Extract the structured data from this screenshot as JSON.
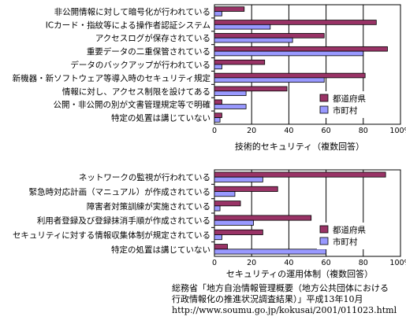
{
  "colors": {
    "prefecture": "#993366",
    "municipality": "#9999ff",
    "axis": "#000000",
    "grid": "#000000"
  },
  "chart_data": [
    {
      "type": "bar",
      "orientation": "horizontal",
      "xlabel": "技術的セキュリティ（複数回答）",
      "xlim": [
        0,
        100
      ],
      "x_ticks": [
        "0",
        "20",
        "40",
        "60",
        "80",
        "100%"
      ],
      "grid": true,
      "legend": "bottom-right",
      "categories": [
        "非公開情報に対して暗号化が行われている",
        "ICカード・指紋等による操作者認証システム",
        "アクセスログが保存されている",
        "重要データの二重保管されている",
        "データのバックアップが行われている",
        "新機器・新ソフトウェア等導入時のセキュリティ規定",
        "情報に対し、アクセス制限を設けてある",
        "公開・非公開の別が文書管理規定等で明確",
        "特定の処置は講じていない"
      ],
      "series": [
        {
          "name": "都道府県",
          "values": [
            16,
            87,
            59,
            93,
            27,
            81,
            39,
            4,
            4
          ]
        },
        {
          "name": "市町村",
          "values": [
            4,
            30,
            42,
            80,
            4,
            59,
            17,
            17,
            3
          ]
        }
      ]
    },
    {
      "type": "bar",
      "orientation": "horizontal",
      "xlabel": "セキュリティの運用体制（複数回答）",
      "xlim": [
        0,
        100
      ],
      "x_ticks": [
        "0",
        "20",
        "40",
        "60",
        "80",
        "100%"
      ],
      "grid": true,
      "legend": "bottom-right",
      "categories": [
        "ネットワークの監視が行われている",
        "緊急時対応計画（マニュアル）が作成されている",
        "障害者対策訓練が実施されている",
        "利用者登録及び登録抹消手順が作成されている",
        "セキュリティに対する情報収集体制が規定されている",
        "特定の処置は講じていない"
      ],
      "series": [
        {
          "name": "都道府県",
          "values": [
            92,
            34,
            14,
            52,
            26,
            7
          ]
        },
        {
          "name": "市町村",
          "values": [
            26,
            11,
            3,
            21,
            4,
            60
          ]
        }
      ]
    }
  ],
  "source": {
    "line1": "総務省「地方自治情報管理概要（地方公共団体における",
    "line2": "行政情報化の推進状況調査結果）」平成13年10月",
    "line3": "http://www.soumu.go.jp/kokusai/2001/011023.html"
  }
}
